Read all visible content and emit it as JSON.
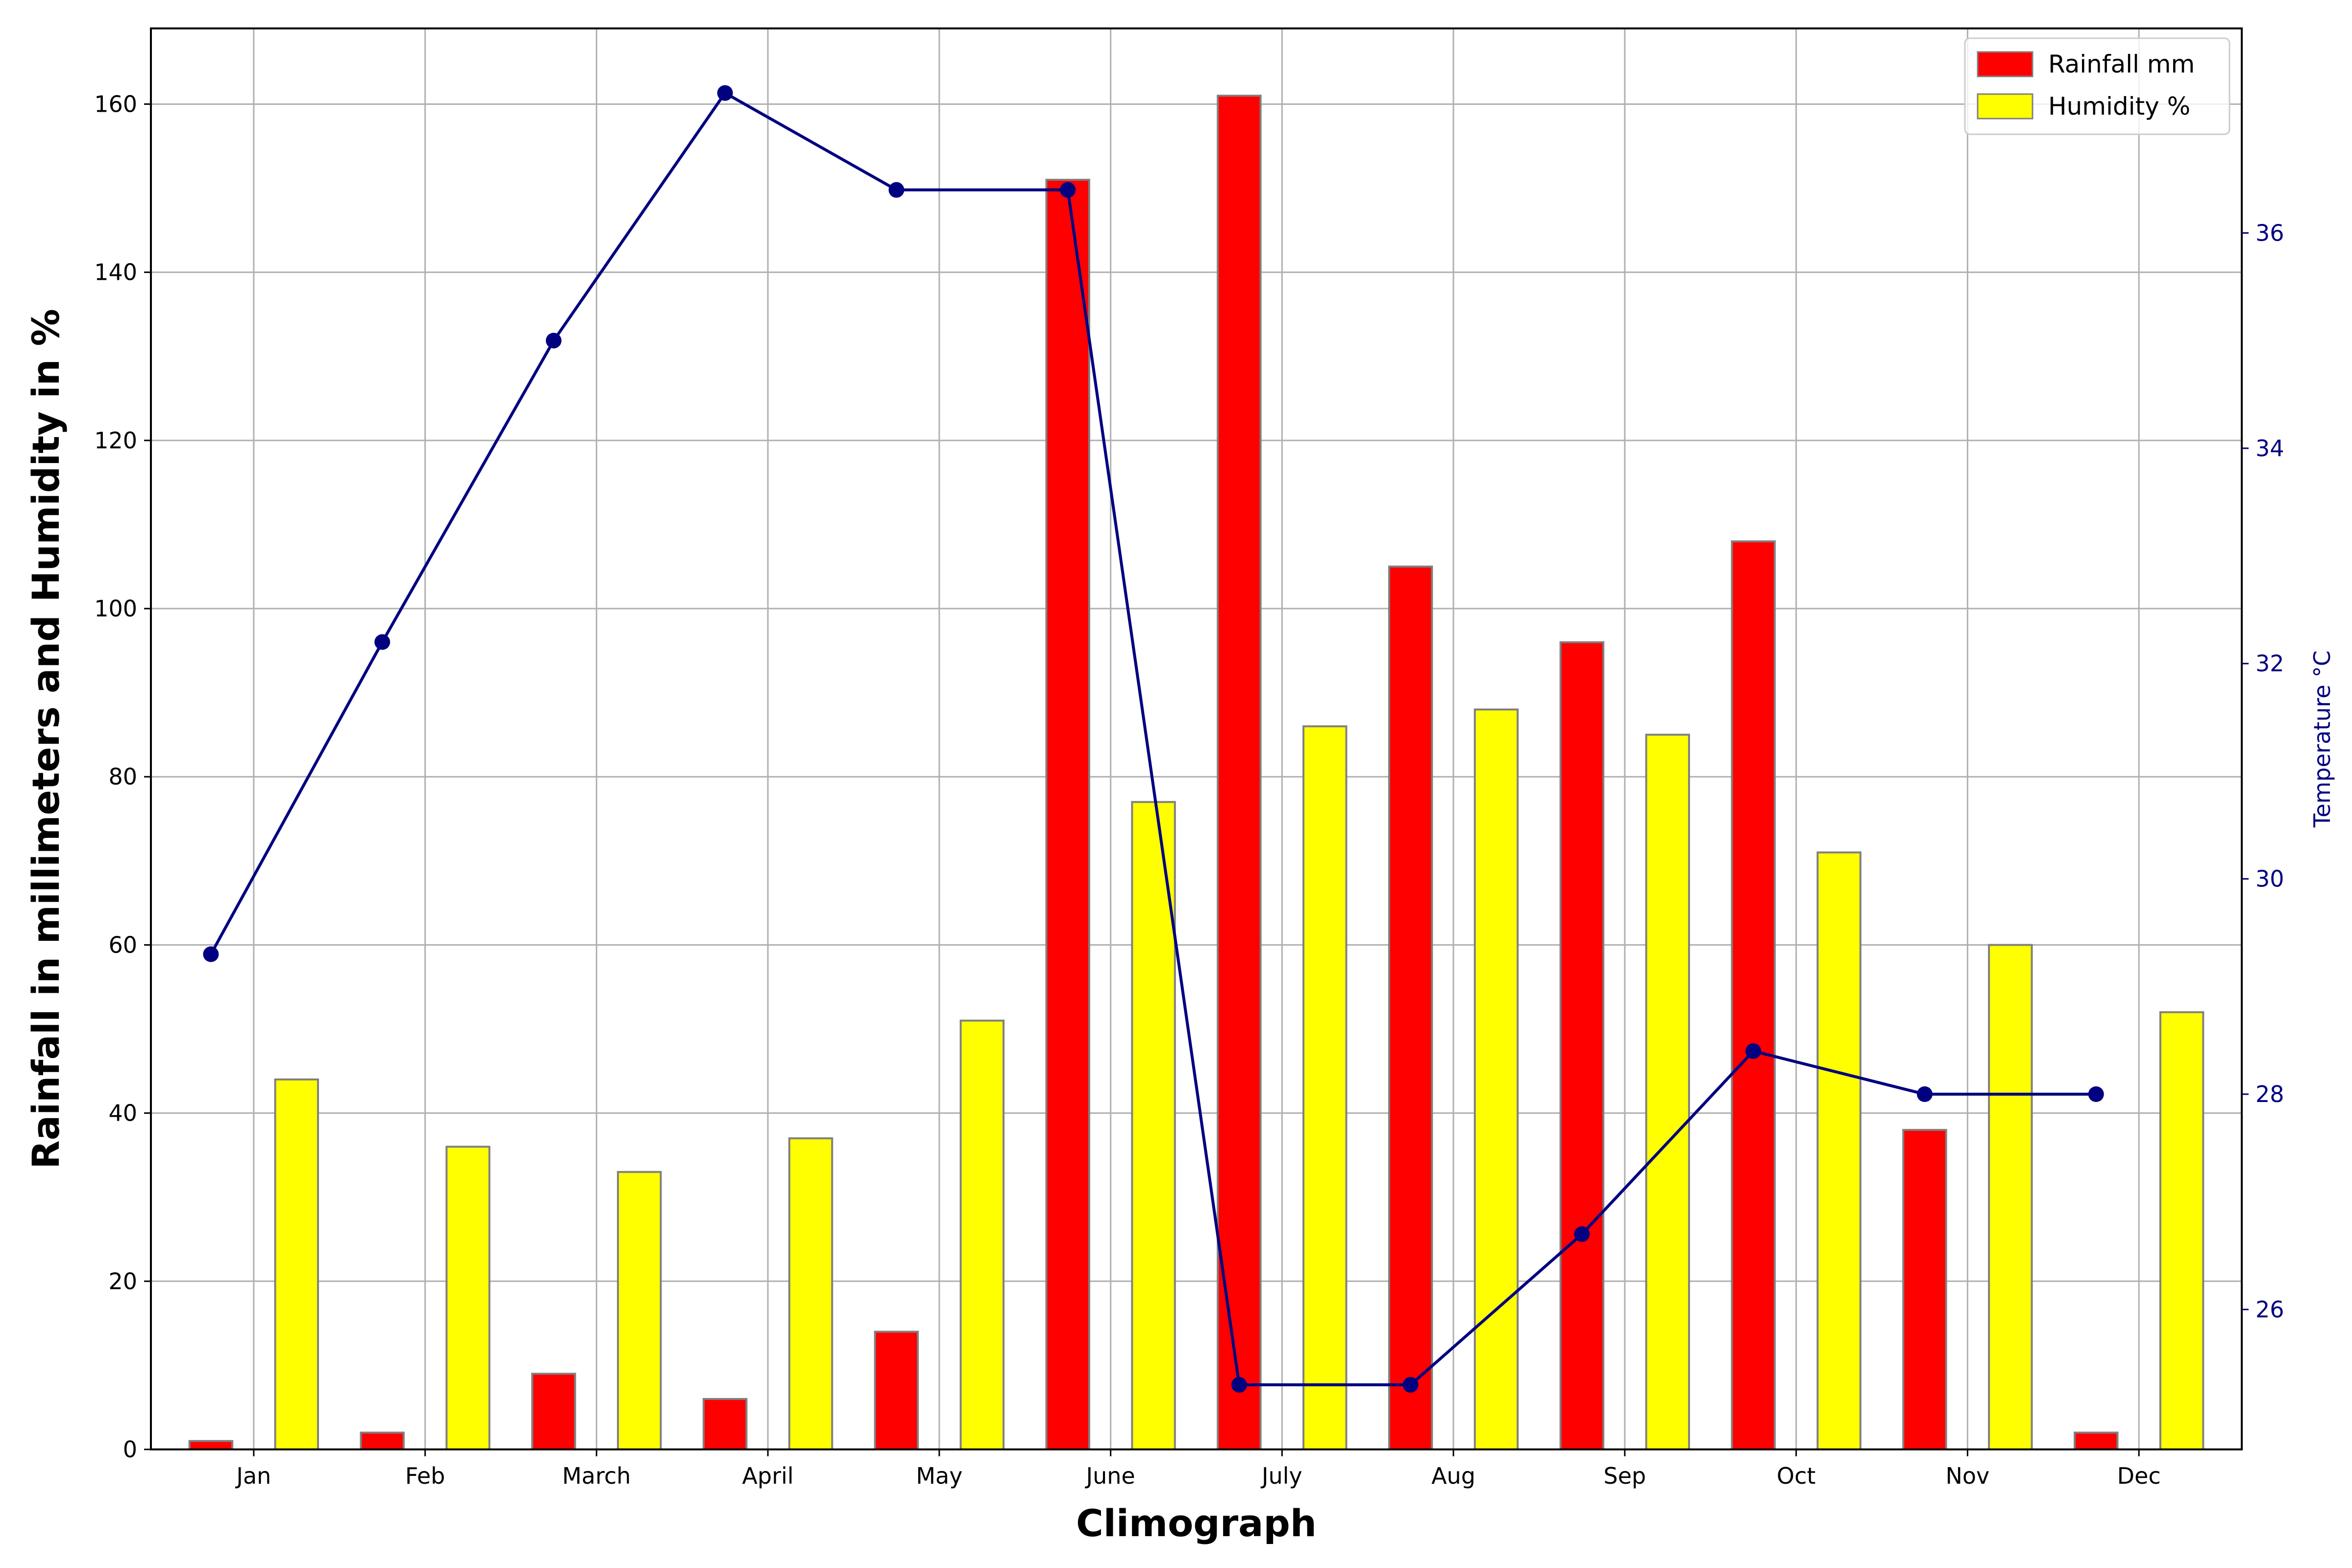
{
  "chart_data": {
    "type": "bar",
    "categories": [
      "Jan",
      "Feb",
      "March",
      "April",
      "May",
      "June",
      "July",
      "Aug",
      "Sep",
      "Oct",
      "Nov",
      "Dec"
    ],
    "series": [
      {
        "name": "Rainfall mm",
        "type": "bar",
        "axis": "left",
        "color": "#ff0000",
        "values": [
          1,
          2,
          9,
          6,
          14,
          151,
          161,
          105,
          96,
          108,
          38,
          2
        ]
      },
      {
        "name": "Humidity %",
        "type": "bar",
        "axis": "left",
        "color": "#ffff00",
        "values": [
          44,
          36,
          33,
          37,
          51,
          77,
          86,
          88,
          85,
          71,
          60,
          52
        ]
      },
      {
        "type": "line",
        "axis": "right",
        "color": "#000080",
        "values": [
          29.3,
          32.2,
          35.0,
          37.3,
          36.4,
          36.4,
          25.3,
          25.3,
          26.7,
          28.4,
          28.0,
          28.0
        ]
      }
    ],
    "xlabel": "Climograph",
    "ylabel": "Rainfall in millimeters and Humidity in %",
    "y2label": "Temperature °C",
    "ylim": [
      0,
      169
    ],
    "y2lim": [
      24.7,
      37.9
    ],
    "yticks": [
      0,
      20,
      40,
      60,
      80,
      100,
      120,
      140,
      160
    ],
    "y2ticks": [
      26,
      28,
      30,
      32,
      34,
      36
    ],
    "grid": true,
    "legend_position": "upper-right",
    "bar_edge_color": "#808080",
    "right_axis_color": "#000080"
  }
}
